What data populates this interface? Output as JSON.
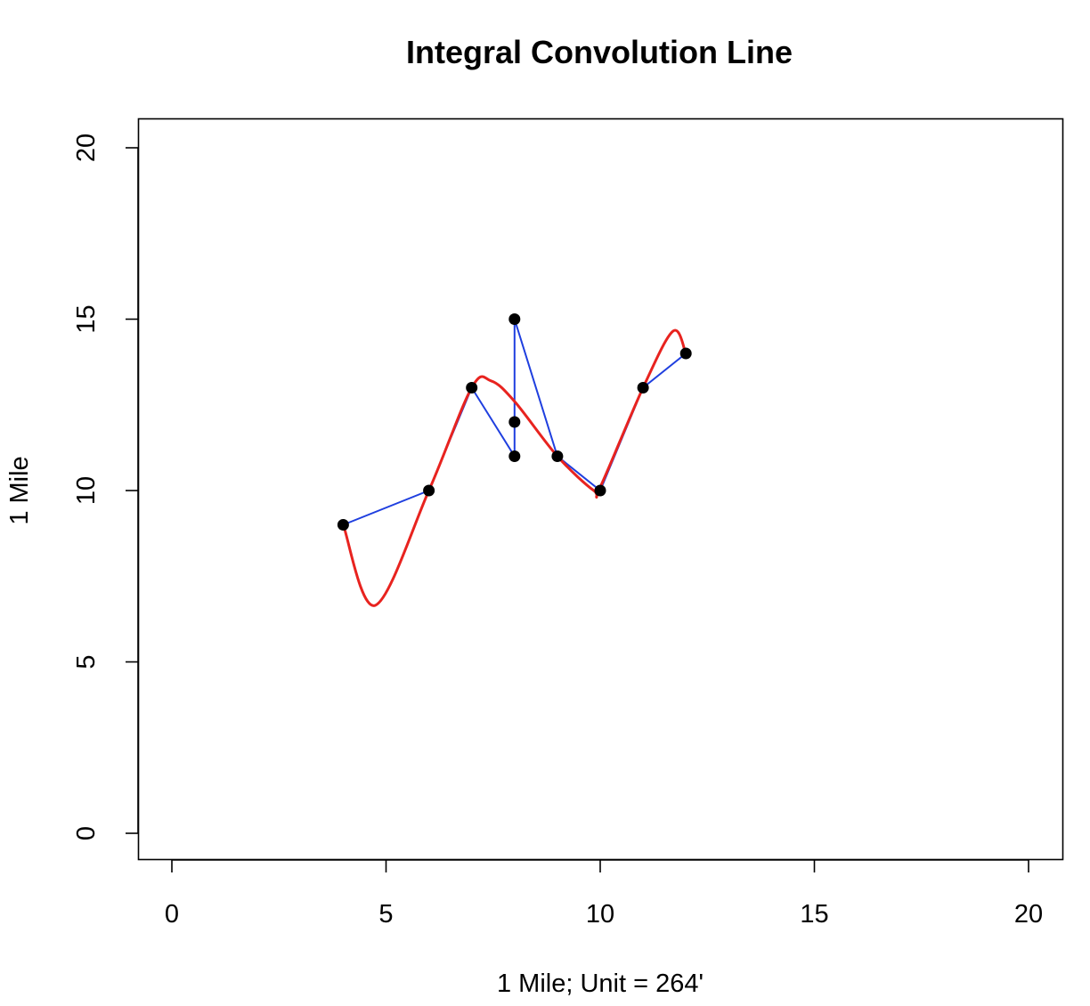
{
  "chart_data": {
    "type": "line",
    "title": "Integral Convolution Line",
    "xlabel": "1 Mile; Unit = 264'",
    "ylabel": "1 Mile",
    "xlim": [
      0,
      20
    ],
    "ylim": [
      0,
      20
    ],
    "xticks": [
      "0",
      "5",
      "10",
      "15",
      "20"
    ],
    "yticks": [
      "0",
      "5",
      "10",
      "15",
      "20"
    ],
    "grid": false,
    "points": {
      "x": [
        4,
        6,
        7,
        8,
        8,
        8,
        9,
        10,
        11,
        12
      ],
      "y": [
        9,
        10,
        13,
        11,
        12,
        15,
        11,
        10,
        13,
        14
      ],
      "color": "#000000"
    },
    "series": [
      {
        "style": "polyline",
        "color": "#1f3fdf",
        "x": [
          4,
          6,
          7,
          8,
          8,
          8,
          9,
          10,
          11,
          12
        ],
        "y": [
          9,
          10,
          13,
          11,
          12,
          15,
          11,
          10,
          13,
          14
        ]
      },
      {
        "style": "smooth-curve",
        "color": "#e8231f",
        "x": [
          4,
          4.75,
          6,
          7,
          7.45,
          8,
          9,
          9.85,
          10,
          11,
          11.7,
          12
        ],
        "y": [
          9,
          6.65,
          10,
          13,
          13.2,
          12.6,
          11,
          10.0,
          10.1,
          13,
          14.65,
          14
        ]
      }
    ]
  }
}
